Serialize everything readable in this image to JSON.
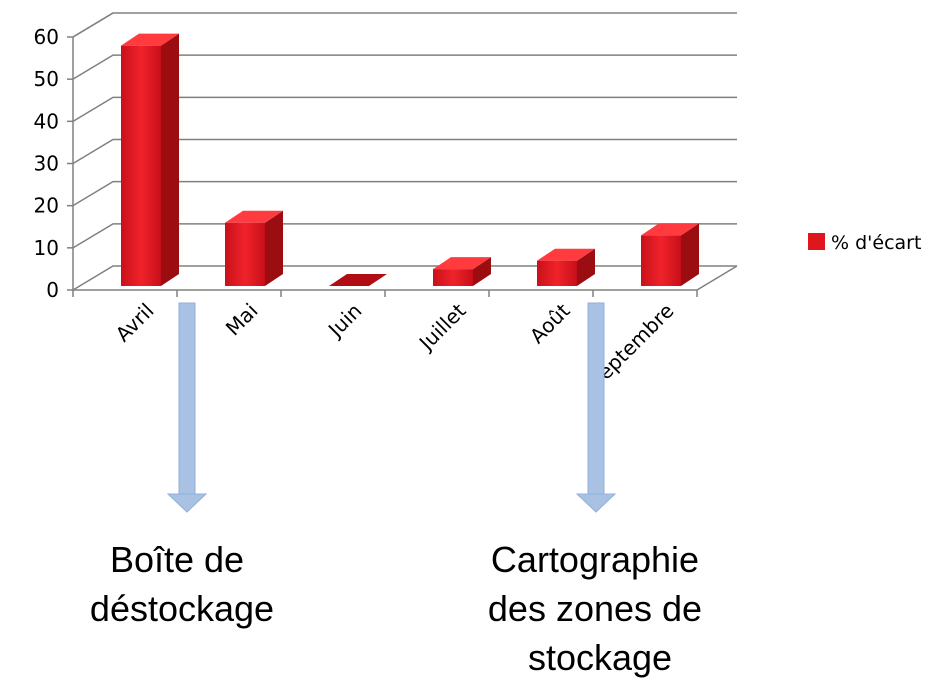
{
  "chart_data": {
    "type": "bar",
    "style": "3d-column",
    "categories": [
      "Avril",
      "Mai",
      "Juin",
      "Juillet",
      "Août",
      "septembre"
    ],
    "series": [
      {
        "name": "% d'écart",
        "values": [
          57,
          15,
          0,
          4,
          6,
          12
        ]
      }
    ],
    "ylim": [
      0,
      60
    ],
    "yticks": [
      0,
      10,
      20,
      30,
      40,
      50,
      60
    ],
    "grid": true,
    "legend_position": "right",
    "colors": {
      "bar_front": "#e0161f",
      "bar_side": "#9c0d12",
      "bar_top": "#ff3b40",
      "grid": "#808080",
      "arrow": "#a9c2e4"
    }
  },
  "annotations": [
    {
      "lines": [
        "Boîte de",
        "déstockage"
      ]
    },
    {
      "lines": [
        "Cartographie",
        "des zones de",
        "stockage"
      ]
    }
  ]
}
